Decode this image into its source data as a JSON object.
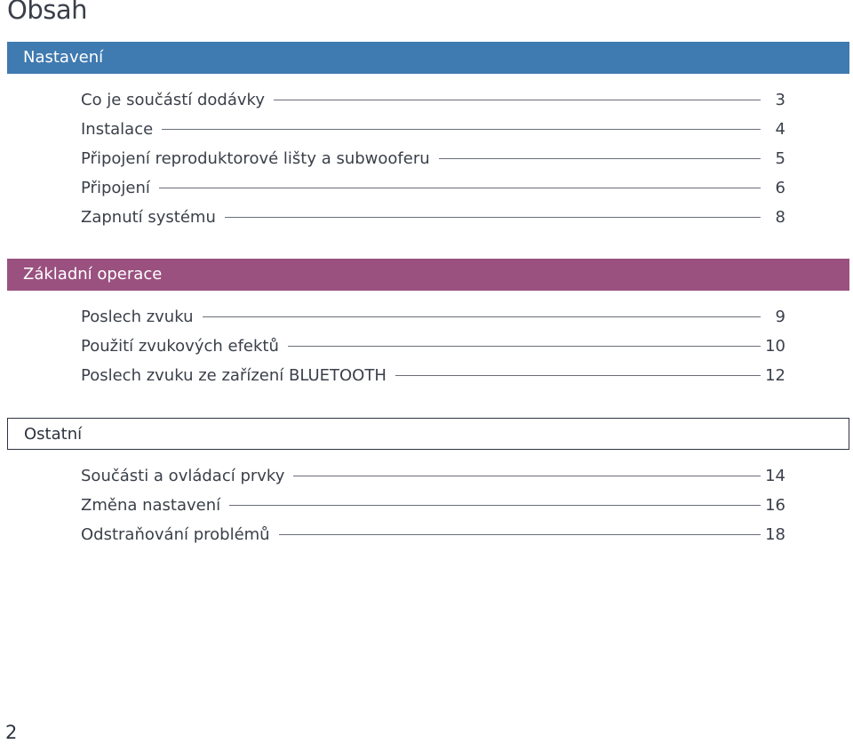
{
  "title": "Obsah",
  "sections": [
    {
      "name": "Nastavení",
      "entries": [
        {
          "label": "Co je součástí dodávky",
          "page": "3"
        },
        {
          "label": "Instalace",
          "page": "4"
        },
        {
          "label": "Připojení reproduktorové lišty a subwooferu",
          "page": "5"
        },
        {
          "label": "Připojení",
          "page": "6"
        },
        {
          "label": "Zapnutí systému",
          "page": "8"
        }
      ]
    },
    {
      "name": "Základní operace",
      "entries": [
        {
          "label": "Poslech zvuku",
          "page": "9"
        },
        {
          "label": "Použití zvukových efektů",
          "page": "10"
        },
        {
          "label": "Poslech zvuku ze zařízení BLUETOOTH",
          "page": "12"
        }
      ]
    },
    {
      "name": "Ostatní",
      "entries": [
        {
          "label": "Součásti a ovládací prvky",
          "page": "14"
        },
        {
          "label": "Změna nastavení",
          "page": "16"
        },
        {
          "label": "Odstraňování problémů",
          "page": "18"
        }
      ]
    }
  ],
  "page_number": "2",
  "colors": {
    "nastaveni_header": "#3f7ab0",
    "zakladni_operace_header": "#9a5180",
    "ostatni_header_border": "#2e3340"
  }
}
